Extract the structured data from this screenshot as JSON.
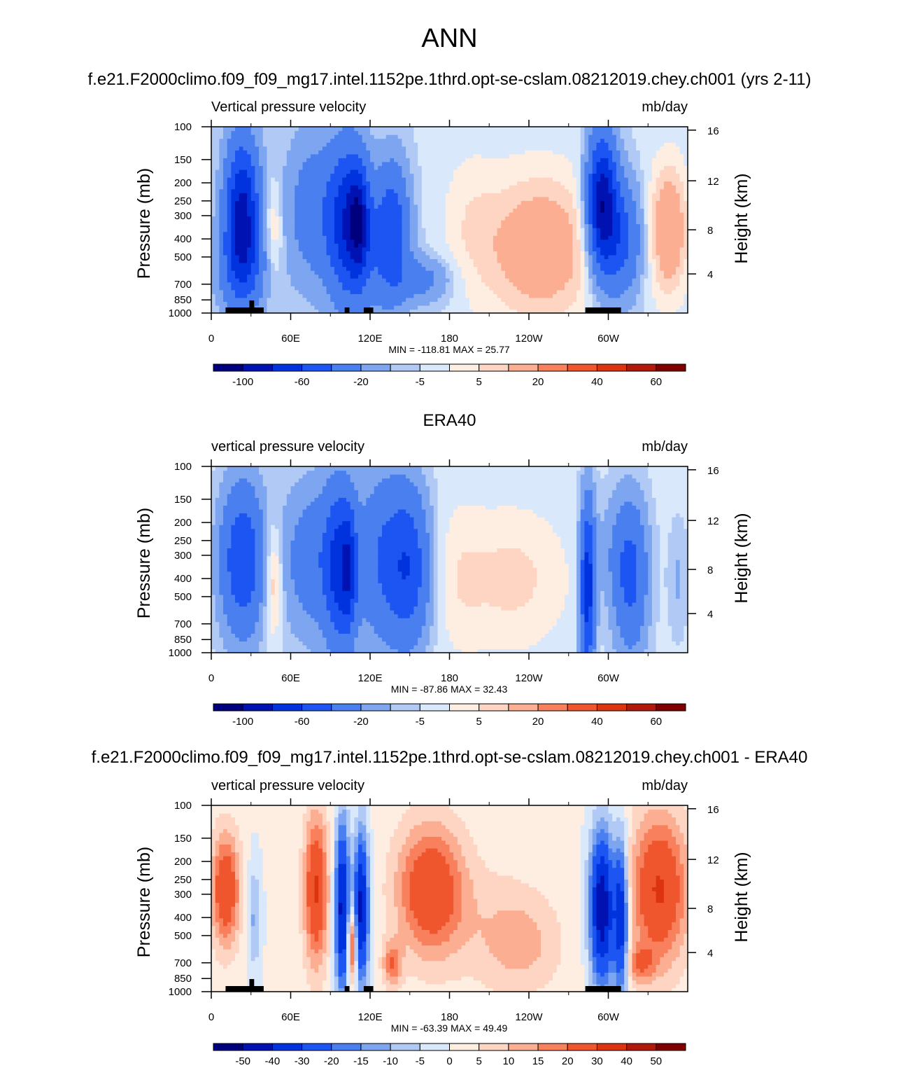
{
  "page_title": "ANN",
  "chart_data": [
    {
      "type": "heatmap",
      "title": "f.e21.F2000climo.f09_f09_mg17.intel.1152pe.1thrd.opt-se-cslam.08212019.chey.ch001 (yrs 2-11)",
      "left_label": "Vertical pressure velocity",
      "right_label": "mb/day",
      "ylabel": "Pressure (mb)",
      "y2label": "Height (km)",
      "stats": "MIN = -118.81  MAX =  25.77",
      "x_ticks": [
        "0",
        "60E",
        "120E",
        "180",
        "120W",
        "60W"
      ],
      "y_ticks": [
        "100",
        "150",
        "200",
        "250",
        "300",
        "400",
        "500",
        "700",
        "850",
        "1000"
      ],
      "y2_ticks": [
        "16",
        "12",
        "8",
        "4"
      ],
      "colorbar_labels": [
        "-100",
        "-60",
        "-20",
        "-5",
        "5",
        "20",
        "40",
        "60"
      ],
      "colors": [
        "#00007f",
        "#0013b2",
        "#0033dd",
        "#1c55f2",
        "#4a7fef",
        "#7da5f0",
        "#b0c9f5",
        "#d9e8fb",
        "#feeee2",
        "#fdd5c2",
        "#fbae92",
        "#f8805c",
        "#f0562e",
        "#dd3410",
        "#b1190b",
        "#800000"
      ]
    },
    {
      "type": "heatmap",
      "title": "ERA40",
      "left_label": "vertical pressure velocity",
      "right_label": "mb/day",
      "ylabel": "Pressure (mb)",
      "y2label": "Height (km)",
      "stats": "MIN = -87.86  MAX =  32.43",
      "x_ticks": [
        "0",
        "60E",
        "120E",
        "180",
        "120W",
        "60W"
      ],
      "y_ticks": [
        "100",
        "150",
        "200",
        "250",
        "300",
        "400",
        "500",
        "700",
        "850",
        "1000"
      ],
      "y2_ticks": [
        "16",
        "12",
        "8",
        "4"
      ],
      "colorbar_labels": [
        "-100",
        "-60",
        "-20",
        "-5",
        "5",
        "20",
        "40",
        "60"
      ],
      "colors": [
        "#00007f",
        "#0013b2",
        "#0033dd",
        "#1c55f2",
        "#4a7fef",
        "#7da5f0",
        "#b0c9f5",
        "#d9e8fb",
        "#feeee2",
        "#fdd5c2",
        "#fbae92",
        "#f8805c",
        "#f0562e",
        "#dd3410",
        "#b1190b",
        "#800000"
      ]
    },
    {
      "type": "heatmap",
      "title": "f.e21.F2000climo.f09_f09_mg17.intel.1152pe.1thrd.opt-se-cslam.08212019.chey.ch001 - ERA40",
      "left_label": "vertical pressure velocity",
      "right_label": "mb/day",
      "ylabel": "Pressure (mb)",
      "y2label": "Height (km)",
      "stats": "MIN = -63.39  MAX =  49.49",
      "x_ticks": [
        "0",
        "60E",
        "120E",
        "180",
        "120W",
        "60W"
      ],
      "y_ticks": [
        "100",
        "150",
        "200",
        "250",
        "300",
        "400",
        "500",
        "700",
        "850",
        "1000"
      ],
      "y2_ticks": [
        "16",
        "12",
        "8",
        "4"
      ],
      "colorbar_labels": [
        "-50",
        "-40",
        "-30",
        "-20",
        "-15",
        "-10",
        "-5",
        "0",
        "5",
        "10",
        "15",
        "20",
        "30",
        "40",
        "50"
      ],
      "colors": [
        "#00007f",
        "#0013b2",
        "#0033dd",
        "#1c55f2",
        "#4a7fef",
        "#7da5f0",
        "#b0c9f5",
        "#d9e8fb",
        "#feeee2",
        "#fdd5c2",
        "#fbae92",
        "#f8805c",
        "#f0562e",
        "#dd3410",
        "#b1190b",
        "#800000"
      ]
    }
  ]
}
